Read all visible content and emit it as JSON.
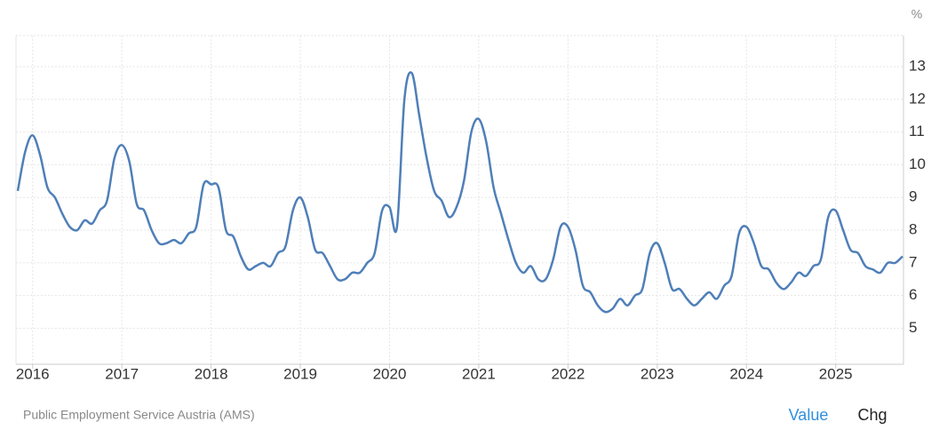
{
  "chart_data": {
    "type": "line",
    "unit": "%",
    "source": "Public Employment Service Austria (AMS)",
    "buttons": [
      "Value",
      "Chg"
    ],
    "categories": [
      null,
      null,
      "2016",
      null,
      null,
      null,
      null,
      null,
      null,
      null,
      null,
      null,
      null,
      null,
      "2017",
      null,
      null,
      null,
      null,
      null,
      null,
      null,
      null,
      null,
      null,
      null,
      "2018",
      null,
      null,
      null,
      null,
      null,
      null,
      null,
      null,
      null,
      null,
      null,
      "2019",
      null,
      null,
      null,
      null,
      null,
      null,
      null,
      null,
      null,
      null,
      null,
      "2020",
      null,
      null,
      null,
      null,
      null,
      null,
      null,
      null,
      null,
      null,
      null,
      "2021",
      null,
      null,
      null,
      null,
      null,
      null,
      null,
      null,
      null,
      null,
      null,
      "2022",
      null,
      null,
      null,
      null,
      null,
      null,
      null,
      null,
      null,
      null,
      null,
      "2023",
      null,
      null,
      null,
      null,
      null,
      null,
      null,
      null,
      null,
      null,
      null,
      "2024",
      null,
      null,
      null,
      null,
      null,
      null,
      null,
      null,
      null,
      null,
      null,
      "2025",
      null,
      null,
      null,
      null,
      null,
      null,
      null,
      null,
      null
    ],
    "series": [
      {
        "color": "#4f7fb8",
        "values": [
          9.2,
          10.4,
          10.9,
          10.3,
          9.3,
          9.0,
          8.5,
          8.1,
          8.0,
          8.3,
          8.2,
          8.6,
          8.9,
          10.2,
          10.6,
          10.1,
          8.8,
          8.6,
          8.0,
          7.6,
          7.6,
          7.7,
          7.6,
          7.9,
          8.1,
          9.4,
          9.4,
          9.3,
          8.0,
          7.8,
          7.2,
          6.8,
          6.9,
          7.0,
          6.9,
          7.3,
          7.5,
          8.6,
          9.0,
          8.4,
          7.4,
          7.3,
          6.9,
          6.5,
          6.5,
          6.7,
          6.7,
          7.0,
          7.3,
          8.6,
          8.7,
          8.1,
          12.0,
          12.8,
          11.5,
          10.2,
          9.2,
          8.9,
          8.4,
          8.7,
          9.5,
          11.0,
          11.4,
          10.7,
          9.3,
          8.5,
          7.7,
          7.0,
          6.7,
          6.9,
          6.5,
          6.5,
          7.1,
          8.1,
          8.1,
          7.4,
          6.3,
          6.1,
          5.7,
          5.5,
          5.6,
          5.9,
          5.7,
          6.0,
          6.2,
          7.3,
          7.6,
          7.0,
          6.2,
          6.2,
          5.9,
          5.7,
          5.9,
          6.1,
          5.9,
          6.3,
          6.6,
          7.9,
          8.1,
          7.6,
          6.9,
          6.8,
          6.4,
          6.2,
          6.4,
          6.7,
          6.6,
          6.9,
          7.1,
          8.4,
          8.6,
          8.0,
          7.4,
          7.3,
          6.9,
          6.8,
          6.7,
          7.0,
          7.0,
          7.2
        ]
      }
    ],
    "ylim": [
      3.9,
      13.95
    ],
    "yticks": [
      5,
      6,
      7,
      8,
      9,
      10,
      11,
      12,
      13
    ],
    "grid": true
  }
}
